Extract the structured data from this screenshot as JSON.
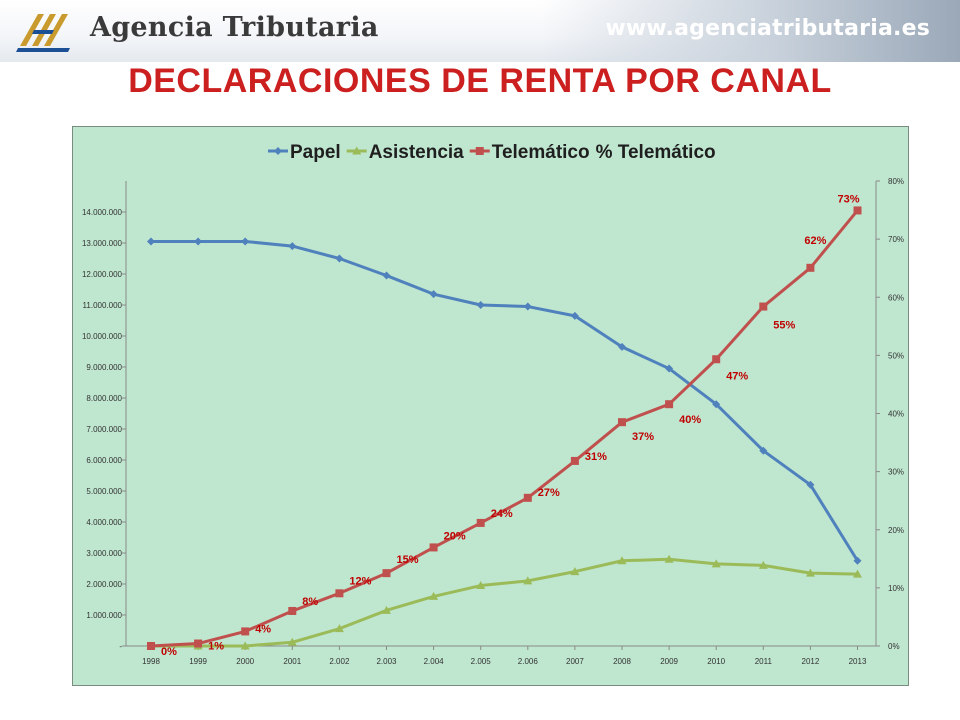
{
  "header": {
    "brand": "Agencia Tributaria",
    "url": "www.agenciatributaria.es",
    "logo_icon": "agencia-tributaria-logo-icon"
  },
  "page_title": "DECLARACIONES DE RENTA POR CANAL",
  "chart_data": {
    "type": "line",
    "title": "",
    "categories": [
      "1998",
      "1999",
      "2000",
      "2001",
      "2.002",
      "2.003",
      "2.004",
      "2.005",
      "2.006",
      "2007",
      "2008",
      "2009",
      "2010",
      "2011",
      "2012",
      "2013"
    ],
    "series": [
      {
        "name": "Papel",
        "axis": "left",
        "color": "#4f81bd",
        "marker": "diamond",
        "values": [
          13050000,
          13050000,
          13050000,
          12900000,
          12500000,
          11950000,
          11350000,
          11000000,
          10950000,
          10650000,
          9650000,
          8950000,
          7800000,
          6300000,
          5200000,
          2750000
        ]
      },
      {
        "name": "Asistencia",
        "axis": "left",
        "color": "#9bbb59",
        "marker": "triangle",
        "values": [
          0,
          0,
          0,
          120000,
          560000,
          1150000,
          1600000,
          1950000,
          2100000,
          2400000,
          2750000,
          2800000,
          2650000,
          2600000,
          2350000,
          2320000
        ]
      },
      {
        "name": "Telemático",
        "axis": "left",
        "color": "#c0504d",
        "marker": "square",
        "values": [
          0,
          80000,
          470000,
          1130000,
          1700000,
          2350000,
          3180000,
          3970000,
          4780000,
          5970000,
          7220000,
          7800000,
          9250000,
          10950000,
          12200000,
          14050000
        ]
      },
      {
        "name": "% Telemático",
        "axis": "right",
        "labels": [
          "0%",
          "1%",
          "4%",
          "8%",
          "12%",
          "15%",
          "20%",
          "24%",
          "27%",
          "31%",
          "37%",
          "40%",
          "47%",
          "55%",
          "62%",
          "73%"
        ]
      }
    ],
    "left_axis": {
      "min": 0,
      "max": 15000000,
      "ticks": [
        "-",
        "1.000.000",
        "2.000.000",
        "3.000.000",
        "4.000.000",
        "5.000.000",
        "6.000.000",
        "7.000.000",
        "8.000.000",
        "9.000.000",
        "10.000.000",
        "11.000.000",
        "12.000.000",
        "13.000.000",
        "14.000.000"
      ]
    },
    "right_axis": {
      "min": 0,
      "max": 0.8,
      "ticks": [
        "0%",
        "10%",
        "20%",
        "30%",
        "40%",
        "50%",
        "60%",
        "70%",
        "80%"
      ]
    },
    "legend_position": "top",
    "grid": false,
    "colors": {
      "background": "#bfe6cf",
      "title": "#cc1f1f",
      "label": "#c00000"
    }
  }
}
